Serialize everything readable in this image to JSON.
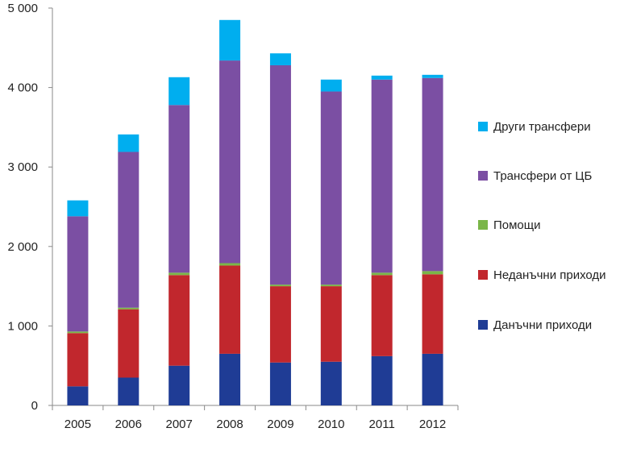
{
  "chart_data": {
    "type": "bar",
    "stacked": true,
    "categories": [
      "2005",
      "2006",
      "2007",
      "2008",
      "2009",
      "2010",
      "2011",
      "2012"
    ],
    "y_tick_labels": [
      "0",
      "1 000",
      "2 000",
      "3 000",
      "4 000",
      "5 000"
    ],
    "y_ticks": [
      0,
      1000,
      2000,
      3000,
      4000,
      5000
    ],
    "ylim": [
      0,
      5000
    ],
    "legend_position": "right",
    "grid": false,
    "series": [
      {
        "name": "Данъчни приходи",
        "color": "#1F3C95",
        "values": [
          240,
          350,
          500,
          650,
          540,
          550,
          620,
          650
        ]
      },
      {
        "name": "Неданъчни приходи",
        "color": "#C1272D",
        "values": [
          670,
          860,
          1140,
          1110,
          960,
          950,
          1020,
          1000
        ]
      },
      {
        "name": "Помощи",
        "color": "#7AB648",
        "values": [
          20,
          20,
          30,
          30,
          20,
          20,
          30,
          40
        ]
      },
      {
        "name": "Трансфери от ЦБ",
        "color": "#7B4FA3",
        "values": [
          1450,
          1960,
          2110,
          2550,
          2760,
          2430,
          2430,
          2430
        ]
      },
      {
        "name": "Други трансфери",
        "color": "#00AEEF",
        "values": [
          200,
          220,
          350,
          510,
          150,
          150,
          50,
          40
        ]
      }
    ]
  }
}
